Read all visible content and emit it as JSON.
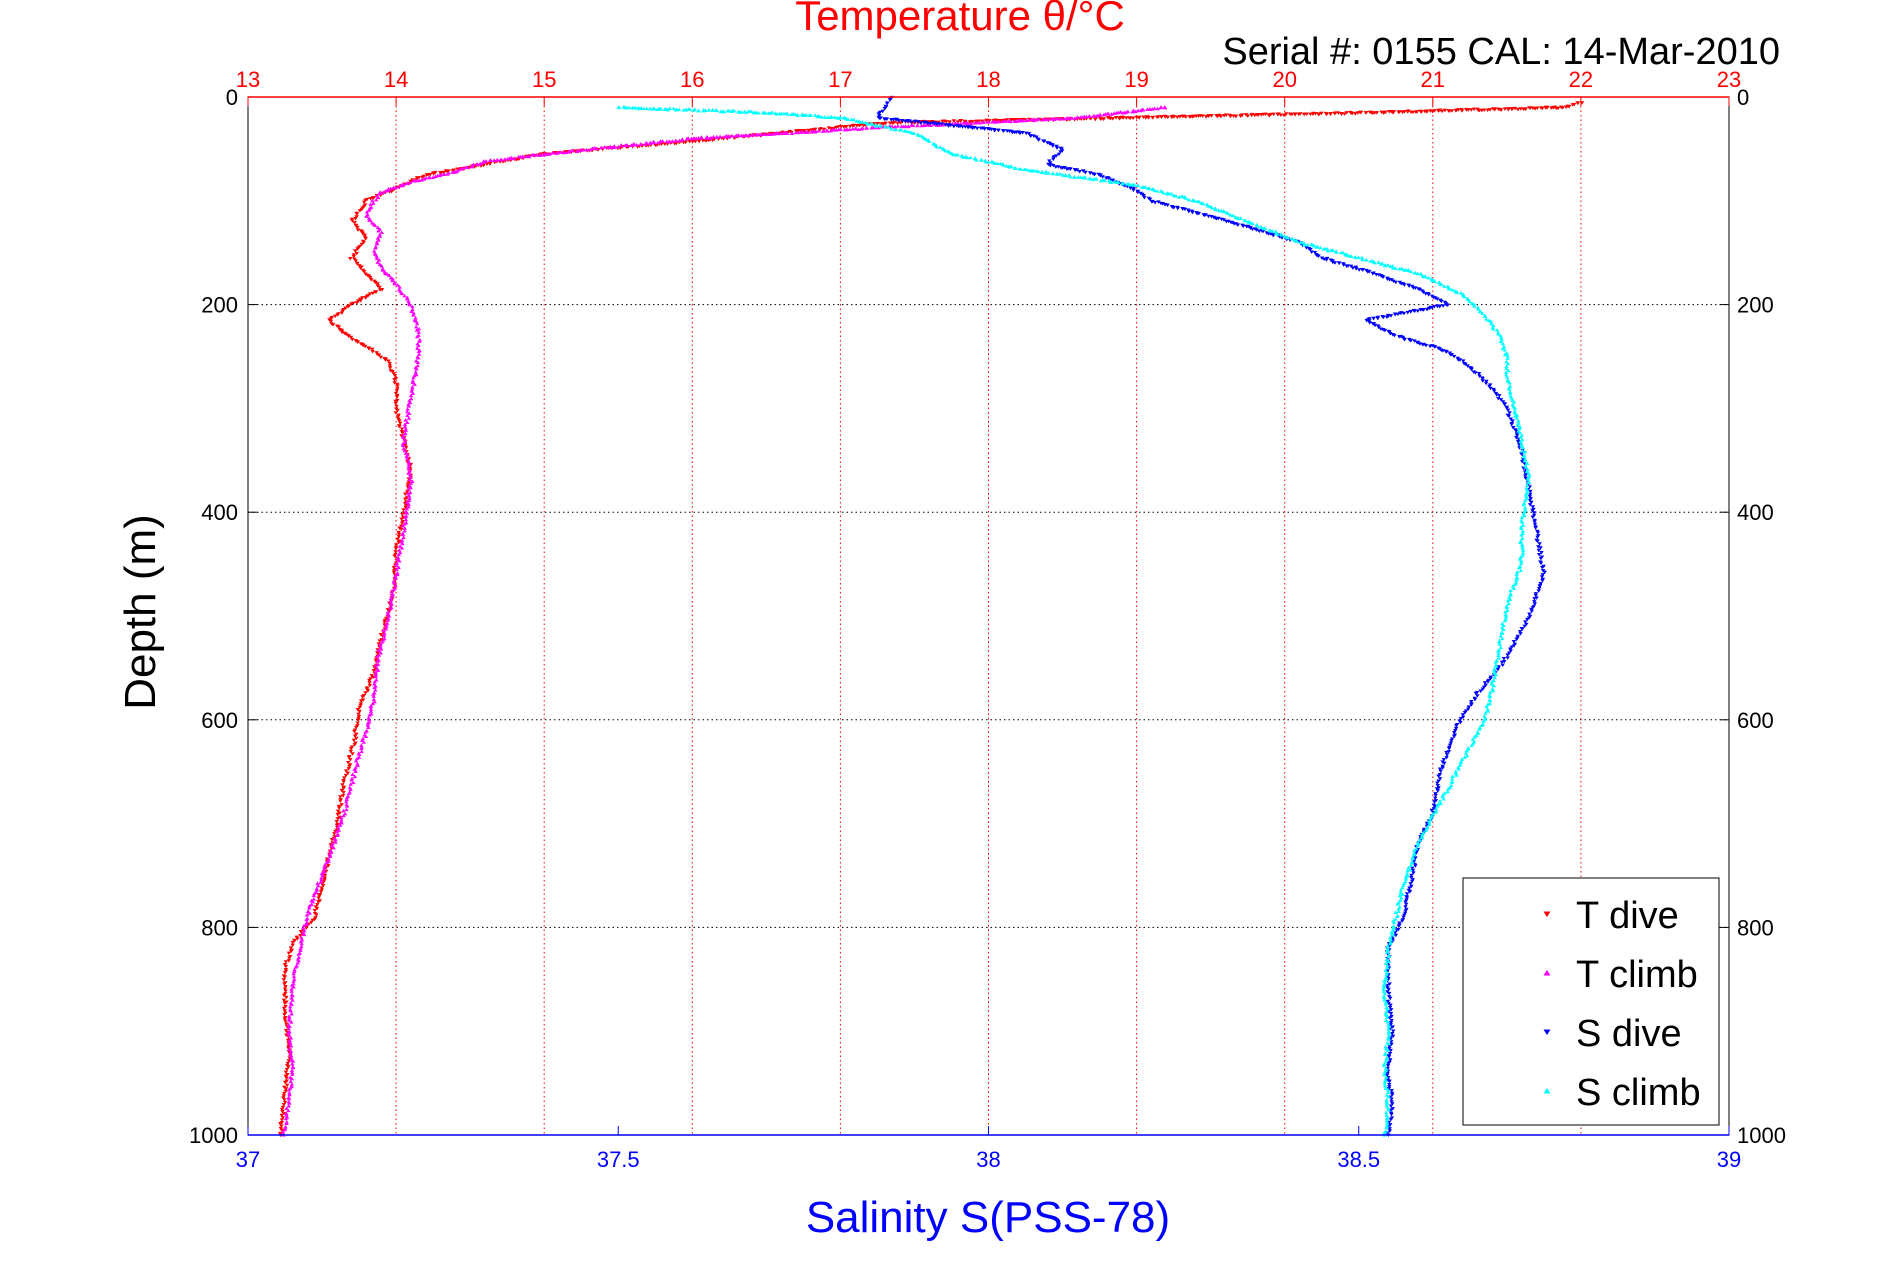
{
  "chart_data": {
    "type": "scatter",
    "title": "Temperature θ/°C",
    "subtitle": "Serial #: 0155  CAL: 14-Mar-2010",
    "ylabel": "Depth (m)",
    "xlabel": "Salinity S(PSS-78)",
    "x2label": "Temperature θ/°C",
    "ylim": [
      0,
      1000
    ],
    "y_reversed": true,
    "salinity_lim": [
      37,
      39
    ],
    "temperature_lim": [
      13,
      23
    ],
    "y_ticks": [
      "0",
      "200",
      "400",
      "600",
      "800",
      "1000"
    ],
    "salinity_ticks": [
      "37",
      "37.5",
      "38",
      "38.5",
      "39"
    ],
    "temperature_ticks": [
      "13",
      "14",
      "15",
      "16",
      "17",
      "18",
      "19",
      "20",
      "21",
      "22",
      "23"
    ],
    "grid": true,
    "legend_position": "bottom-right",
    "colors": {
      "temperature_axis": "#ff0000",
      "salinity_axis": "#0000ff",
      "t_dive": "#ff0000",
      "t_climb": "#ff00ff",
      "s_dive": "#0000ff",
      "s_climb": "#00ffff"
    },
    "series": [
      {
        "name": "T dive",
        "axis": "temperature",
        "marker": "triangle-down",
        "points": [
          [
            22.0,
            5
          ],
          [
            21.9,
            10
          ],
          [
            20.6,
            15
          ],
          [
            17.3,
            25
          ],
          [
            16.2,
            40
          ],
          [
            15.0,
            55
          ],
          [
            14.6,
            65
          ],
          [
            14.2,
            75
          ],
          [
            14.0,
            88
          ],
          [
            13.8,
            100
          ],
          [
            13.7,
            120
          ],
          [
            13.8,
            135
          ],
          [
            13.7,
            155
          ],
          [
            13.8,
            170
          ],
          [
            13.9,
            185
          ],
          [
            13.7,
            200
          ],
          [
            13.55,
            215
          ],
          [
            13.65,
            228
          ],
          [
            13.8,
            240
          ],
          [
            13.95,
            255
          ],
          [
            14.0,
            275
          ],
          [
            14.0,
            300
          ],
          [
            14.05,
            330
          ],
          [
            14.1,
            360
          ],
          [
            14.05,
            400
          ],
          [
            14.0,
            440
          ],
          [
            13.98,
            480
          ],
          [
            13.9,
            520
          ],
          [
            13.85,
            555
          ],
          [
            13.75,
            590
          ],
          [
            13.72,
            620
          ],
          [
            13.65,
            660
          ],
          [
            13.6,
            700
          ],
          [
            13.55,
            730
          ],
          [
            13.5,
            760
          ],
          [
            13.45,
            790
          ],
          [
            13.3,
            815
          ],
          [
            13.25,
            840
          ],
          [
            13.25,
            880
          ],
          [
            13.28,
            920
          ],
          [
            13.25,
            960
          ],
          [
            13.22,
            1000
          ]
        ]
      },
      {
        "name": "T climb",
        "axis": "temperature",
        "marker": "triangle-up",
        "points": [
          [
            19.2,
            10
          ],
          [
            18.6,
            20
          ],
          [
            17.2,
            30
          ],
          [
            16.0,
            40
          ],
          [
            15.2,
            52
          ],
          [
            14.6,
            62
          ],
          [
            14.4,
            72
          ],
          [
            14.1,
            82
          ],
          [
            13.9,
            92
          ],
          [
            13.85,
            100
          ],
          [
            13.8,
            115
          ],
          [
            13.9,
            130
          ],
          [
            13.85,
            150
          ],
          [
            13.9,
            165
          ],
          [
            14.0,
            180
          ],
          [
            14.1,
            200
          ],
          [
            14.15,
            225
          ],
          [
            14.15,
            250
          ],
          [
            14.1,
            290
          ],
          [
            14.05,
            330
          ],
          [
            14.1,
            370
          ],
          [
            14.05,
            420
          ],
          [
            14.0,
            460
          ],
          [
            13.95,
            500
          ],
          [
            13.88,
            540
          ],
          [
            13.85,
            580
          ],
          [
            13.8,
            610
          ],
          [
            13.72,
            650
          ],
          [
            13.65,
            690
          ],
          [
            13.58,
            720
          ],
          [
            13.5,
            750
          ],
          [
            13.42,
            780
          ],
          [
            13.35,
            820
          ],
          [
            13.3,
            860
          ],
          [
            13.28,
            900
          ],
          [
            13.3,
            940
          ],
          [
            13.27,
            970
          ],
          [
            13.24,
            1000
          ]
        ]
      },
      {
        "name": "S dive",
        "axis": "salinity",
        "marker": "triangle-down",
        "points": [
          [
            37.87,
            0
          ],
          [
            37.85,
            20
          ],
          [
            38.05,
            35
          ],
          [
            38.1,
            50
          ],
          [
            38.08,
            65
          ],
          [
            38.15,
            75
          ],
          [
            38.2,
            90
          ],
          [
            38.22,
            100
          ],
          [
            38.3,
            115
          ],
          [
            38.35,
            125
          ],
          [
            38.42,
            140
          ],
          [
            38.45,
            155
          ],
          [
            38.52,
            170
          ],
          [
            38.58,
            185
          ],
          [
            38.62,
            200
          ],
          [
            38.51,
            215
          ],
          [
            38.55,
            230
          ],
          [
            38.62,
            245
          ],
          [
            38.65,
            260
          ],
          [
            38.68,
            280
          ],
          [
            38.7,
            300
          ],
          [
            38.72,
            340
          ],
          [
            38.73,
            380
          ],
          [
            38.74,
            420
          ],
          [
            38.75,
            460
          ],
          [
            38.73,
            500
          ],
          [
            38.7,
            540
          ],
          [
            38.66,
            575
          ],
          [
            38.63,
            610
          ],
          [
            38.61,
            650
          ],
          [
            38.6,
            690
          ],
          [
            38.58,
            720
          ],
          [
            38.57,
            760
          ],
          [
            38.56,
            790
          ],
          [
            38.54,
            820
          ],
          [
            38.54,
            860
          ],
          [
            38.545,
            900
          ],
          [
            38.54,
            940
          ],
          [
            38.545,
            970
          ],
          [
            38.54,
            1000
          ]
        ]
      },
      {
        "name": "S climb",
        "axis": "salinity",
        "marker": "triangle-up",
        "points": [
          [
            37.5,
            10
          ],
          [
            37.7,
            15
          ],
          [
            37.8,
            20
          ],
          [
            37.9,
            35
          ],
          [
            37.95,
            55
          ],
          [
            38.05,
            70
          ],
          [
            38.2,
            85
          ],
          [
            38.28,
            100
          ],
          [
            38.35,
            120
          ],
          [
            38.42,
            140
          ],
          [
            38.5,
            155
          ],
          [
            38.58,
            170
          ],
          [
            38.64,
            190
          ],
          [
            38.67,
            210
          ],
          [
            38.69,
            230
          ],
          [
            38.7,
            250
          ],
          [
            38.7,
            270
          ],
          [
            38.71,
            300
          ],
          [
            38.72,
            330
          ],
          [
            38.73,
            370
          ],
          [
            38.72,
            410
          ],
          [
            38.72,
            450
          ],
          [
            38.7,
            490
          ],
          [
            38.69,
            530
          ],
          [
            38.68,
            570
          ],
          [
            38.67,
            600
          ],
          [
            38.64,
            640
          ],
          [
            38.61,
            680
          ],
          [
            38.58,
            720
          ],
          [
            38.56,
            760
          ],
          [
            38.55,
            790
          ],
          [
            38.54,
            820
          ],
          [
            38.535,
            860
          ],
          [
            38.54,
            900
          ],
          [
            38.535,
            940
          ],
          [
            38.54,
            970
          ],
          [
            38.535,
            1000
          ]
        ]
      }
    ]
  }
}
